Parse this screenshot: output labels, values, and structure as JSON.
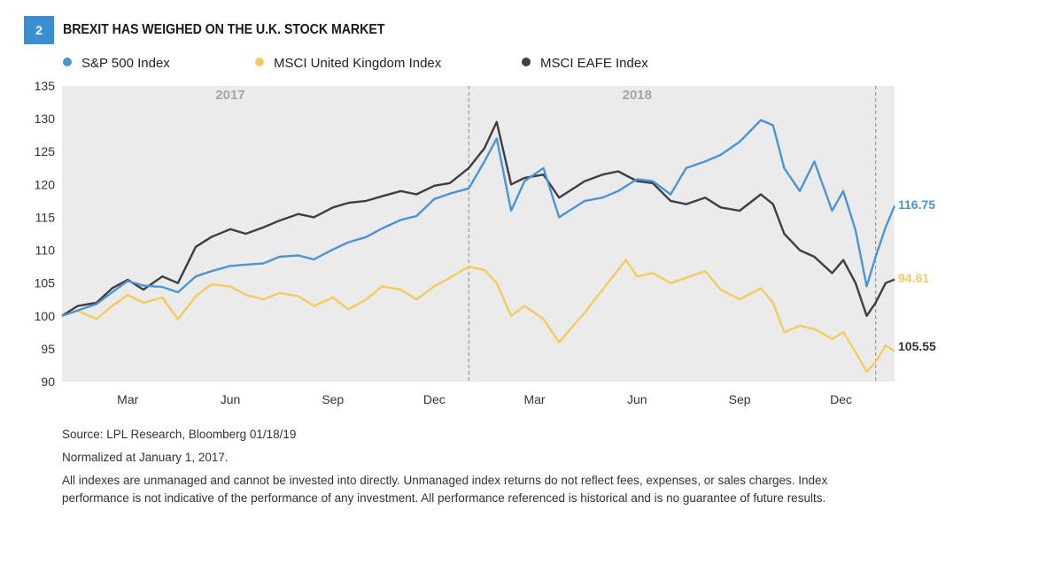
{
  "header": {
    "badge": "2",
    "title": "BREXIT HAS WEIGHED ON THE U.K. STOCK MARKET"
  },
  "footer": {
    "source": "Source: LPL Research, Bloomberg   01/18/19",
    "note": "Normalized at January 1, 2017.",
    "disclaimer": "All indexes are unmanaged and cannot be invested into directly. Unmanaged index returns do not reflect fees, expenses, or sales charges. Index performance is not indicative of the performance of any investment. All performance referenced is historical and is no guarantee of future results."
  },
  "chart_data": {
    "type": "line",
    "title": "BREXIT HAS WEIGHED ON THE U.K. STOCK MARKET",
    "x_start": "2017-01-01",
    "x_end": "2019-01-18",
    "xticks": [
      {
        "label": "Mar",
        "date": "2017-03-01"
      },
      {
        "label": "Jun",
        "date": "2017-06-01"
      },
      {
        "label": "Sep",
        "date": "2017-09-01"
      },
      {
        "label": "Dec",
        "date": "2017-12-01"
      },
      {
        "label": "Mar",
        "date": "2018-03-01"
      },
      {
        "label": "Jun",
        "date": "2018-06-01"
      },
      {
        "label": "Sep",
        "date": "2018-09-01"
      },
      {
        "label": "Dec",
        "date": "2018-12-01"
      }
    ],
    "year_labels": [
      {
        "label": "2017",
        "date": "2017-06-01"
      },
      {
        "label": "2018",
        "date": "2018-06-01"
      }
    ],
    "dividers": [
      "2018-01-01",
      "2019-01-01"
    ],
    "ylim": [
      90,
      135
    ],
    "yticks": [
      90,
      95,
      100,
      105,
      110,
      115,
      120,
      125,
      130,
      135
    ],
    "legend_position": "top",
    "background": "#ebebeb",
    "series": [
      {
        "name": "S&P 500 Index",
        "color": "#4a95d2",
        "end_label": "116.75",
        "points": [
          [
            "2017-01-01",
            100
          ],
          [
            "2017-01-15",
            100.8
          ],
          [
            "2017-02-01",
            101.8
          ],
          [
            "2017-02-15",
            103.6
          ],
          [
            "2017-03-01",
            105.3
          ],
          [
            "2017-03-15",
            104.6
          ],
          [
            "2017-04-01",
            104.4
          ],
          [
            "2017-04-15",
            103.6
          ],
          [
            "2017-05-01",
            106.0
          ],
          [
            "2017-05-15",
            106.8
          ],
          [
            "2017-06-01",
            107.6
          ],
          [
            "2017-06-15",
            107.8
          ],
          [
            "2017-07-01",
            108.0
          ],
          [
            "2017-07-15",
            109.0
          ],
          [
            "2017-08-01",
            109.2
          ],
          [
            "2017-08-15",
            108.6
          ],
          [
            "2017-09-01",
            110.1
          ],
          [
            "2017-09-15",
            111.2
          ],
          [
            "2017-10-01",
            112.0
          ],
          [
            "2017-10-15",
            113.3
          ],
          [
            "2017-11-01",
            114.6
          ],
          [
            "2017-11-15",
            115.2
          ],
          [
            "2017-12-01",
            117.8
          ],
          [
            "2017-12-15",
            118.6
          ],
          [
            "2018-01-01",
            119.4
          ],
          [
            "2018-01-15",
            123.5
          ],
          [
            "2018-01-26",
            127.0
          ],
          [
            "2018-02-08",
            116.0
          ],
          [
            "2018-02-20",
            120.5
          ],
          [
            "2018-03-09",
            122.5
          ],
          [
            "2018-03-23",
            115.0
          ],
          [
            "2018-04-15",
            117.5
          ],
          [
            "2018-05-01",
            118.0
          ],
          [
            "2018-05-15",
            119.0
          ],
          [
            "2018-06-01",
            120.8
          ],
          [
            "2018-06-15",
            120.5
          ],
          [
            "2018-07-01",
            118.5
          ],
          [
            "2018-07-15",
            122.5
          ],
          [
            "2018-08-01",
            123.5
          ],
          [
            "2018-08-15",
            124.5
          ],
          [
            "2018-09-01",
            126.5
          ],
          [
            "2018-09-20",
            129.8
          ],
          [
            "2018-10-01",
            129.0
          ],
          [
            "2018-10-11",
            122.5
          ],
          [
            "2018-10-25",
            119.0
          ],
          [
            "2018-11-07",
            123.5
          ],
          [
            "2018-11-23",
            116.0
          ],
          [
            "2018-12-03",
            119.0
          ],
          [
            "2018-12-14",
            113.0
          ],
          [
            "2018-12-24",
            104.5
          ],
          [
            "2019-01-01",
            109.0
          ],
          [
            "2019-01-10",
            113.5
          ],
          [
            "2019-01-18",
            116.75
          ]
        ]
      },
      {
        "name": "MSCI United Kingdom Index",
        "color": "#f0cd5d",
        "end_label": "94.61",
        "points": [
          [
            "2017-01-01",
            100
          ],
          [
            "2017-01-15",
            100.8
          ],
          [
            "2017-02-01",
            99.5
          ],
          [
            "2017-02-15",
            101.5
          ],
          [
            "2017-03-01",
            103.2
          ],
          [
            "2017-03-15",
            102.0
          ],
          [
            "2017-04-01",
            102.8
          ],
          [
            "2017-04-15",
            99.5
          ],
          [
            "2017-05-01",
            103.0
          ],
          [
            "2017-05-15",
            104.8
          ],
          [
            "2017-06-01",
            104.5
          ],
          [
            "2017-06-15",
            103.2
          ],
          [
            "2017-07-01",
            102.5
          ],
          [
            "2017-07-15",
            103.5
          ],
          [
            "2017-08-01",
            103.0
          ],
          [
            "2017-08-15",
            101.5
          ],
          [
            "2017-09-01",
            102.8
          ],
          [
            "2017-09-15",
            101.0
          ],
          [
            "2017-10-01",
            102.5
          ],
          [
            "2017-10-15",
            104.5
          ],
          [
            "2017-11-01",
            104.0
          ],
          [
            "2017-11-15",
            102.5
          ],
          [
            "2017-12-01",
            104.5
          ],
          [
            "2017-12-15",
            105.8
          ],
          [
            "2018-01-01",
            107.5
          ],
          [
            "2018-01-15",
            107.0
          ],
          [
            "2018-01-26",
            105.0
          ],
          [
            "2018-02-08",
            100.0
          ],
          [
            "2018-02-20",
            101.5
          ],
          [
            "2018-03-09",
            99.5
          ],
          [
            "2018-03-23",
            96.0
          ],
          [
            "2018-04-15",
            100.5
          ],
          [
            "2018-05-01",
            104.0
          ],
          [
            "2018-05-22",
            108.5
          ],
          [
            "2018-06-01",
            106.0
          ],
          [
            "2018-06-15",
            106.5
          ],
          [
            "2018-07-01",
            105.0
          ],
          [
            "2018-07-15",
            105.8
          ],
          [
            "2018-08-01",
            106.8
          ],
          [
            "2018-08-15",
            104.0
          ],
          [
            "2018-09-01",
            102.5
          ],
          [
            "2018-09-20",
            104.2
          ],
          [
            "2018-10-01",
            102.0
          ],
          [
            "2018-10-11",
            97.5
          ],
          [
            "2018-10-25",
            98.5
          ],
          [
            "2018-11-07",
            98.0
          ],
          [
            "2018-11-23",
            96.5
          ],
          [
            "2018-12-03",
            97.5
          ],
          [
            "2018-12-14",
            94.5
          ],
          [
            "2018-12-24",
            91.5
          ],
          [
            "2019-01-01",
            93.0
          ],
          [
            "2019-01-10",
            95.5
          ],
          [
            "2019-01-18",
            94.61
          ]
        ]
      },
      {
        "name": "MSCI EAFE Index",
        "color": "#3e3e44",
        "end_label": "105.55",
        "points": [
          [
            "2017-01-01",
            100
          ],
          [
            "2017-01-15",
            101.5
          ],
          [
            "2017-02-01",
            102.0
          ],
          [
            "2017-02-15",
            104.2
          ],
          [
            "2017-03-01",
            105.5
          ],
          [
            "2017-03-15",
            104.0
          ],
          [
            "2017-04-01",
            106.0
          ],
          [
            "2017-04-15",
            105.0
          ],
          [
            "2017-05-01",
            110.5
          ],
          [
            "2017-05-15",
            112.0
          ],
          [
            "2017-06-01",
            113.2
          ],
          [
            "2017-06-15",
            112.5
          ],
          [
            "2017-07-01",
            113.5
          ],
          [
            "2017-07-15",
            114.5
          ],
          [
            "2017-08-01",
            115.5
          ],
          [
            "2017-08-15",
            115.0
          ],
          [
            "2017-09-01",
            116.5
          ],
          [
            "2017-09-15",
            117.2
          ],
          [
            "2017-10-01",
            117.5
          ],
          [
            "2017-10-15",
            118.2
          ],
          [
            "2017-11-01",
            119.0
          ],
          [
            "2017-11-15",
            118.5
          ],
          [
            "2017-12-01",
            119.8
          ],
          [
            "2017-12-15",
            120.2
          ],
          [
            "2018-01-01",
            122.5
          ],
          [
            "2018-01-15",
            125.5
          ],
          [
            "2018-01-26",
            129.5
          ],
          [
            "2018-02-08",
            120.0
          ],
          [
            "2018-02-20",
            121.0
          ],
          [
            "2018-03-09",
            121.5
          ],
          [
            "2018-03-23",
            118.0
          ],
          [
            "2018-04-15",
            120.5
          ],
          [
            "2018-05-01",
            121.5
          ],
          [
            "2018-05-15",
            122.0
          ],
          [
            "2018-06-01",
            120.5
          ],
          [
            "2018-06-15",
            120.2
          ],
          [
            "2018-07-01",
            117.5
          ],
          [
            "2018-07-15",
            117.0
          ],
          [
            "2018-08-01",
            118.0
          ],
          [
            "2018-08-15",
            116.5
          ],
          [
            "2018-09-01",
            116.0
          ],
          [
            "2018-09-20",
            118.5
          ],
          [
            "2018-10-01",
            117.0
          ],
          [
            "2018-10-11",
            112.5
          ],
          [
            "2018-10-25",
            110.0
          ],
          [
            "2018-11-07",
            109.0
          ],
          [
            "2018-11-23",
            106.5
          ],
          [
            "2018-12-03",
            108.5
          ],
          [
            "2018-12-14",
            105.0
          ],
          [
            "2018-12-24",
            100.0
          ],
          [
            "2019-01-01",
            102.0
          ],
          [
            "2019-01-10",
            105.0
          ],
          [
            "2019-01-18",
            105.55
          ]
        ]
      }
    ]
  }
}
